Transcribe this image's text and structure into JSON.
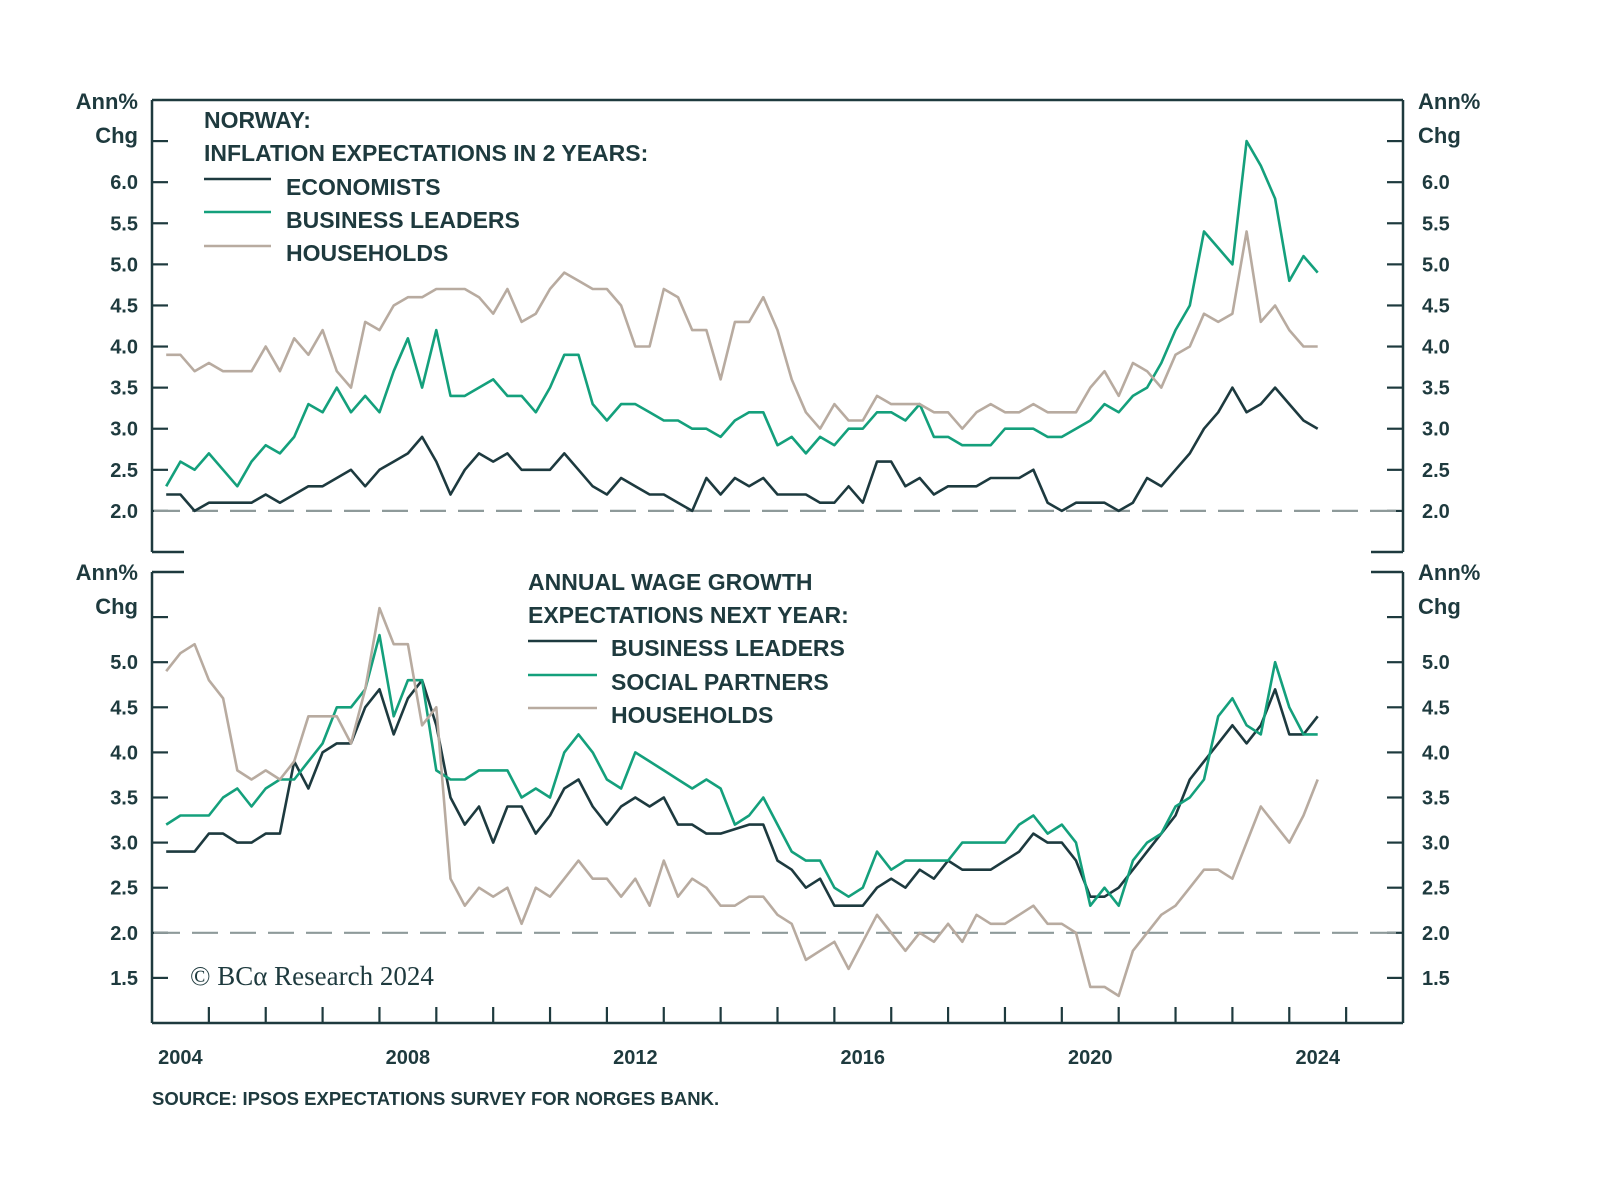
{
  "colors": {
    "frame": "#1e3a3e",
    "dark": "#1d3a3f",
    "green": "#14a07c",
    "tan": "#b8aba0",
    "dashed": "#8e9a9a"
  },
  "x_axis": {
    "tick_labels": [
      "2004",
      "2008",
      "2012",
      "2016",
      "2020",
      "2024"
    ]
  },
  "source": "SOURCE: IPSOS EXPECTATIONS SURVEY FOR NORGES BANK.",
  "copyright": "© BCα Research 2024",
  "chart_data": [
    {
      "type": "line",
      "title_lines": [
        "NORWAY:",
        "INFLATION EXPECTATIONS IN 2 YEARS:"
      ],
      "ylabel_lines": [
        "Ann%",
        "Chg"
      ],
      "ylim": [
        1.5,
        7.0
      ],
      "xlim": [
        2003.5,
        2025.5
      ],
      "y_tick_labels": [
        "2.0",
        "2.5",
        "3.0",
        "3.5",
        "4.0",
        "4.5",
        "5.0",
        "5.5",
        "6.0"
      ],
      "reference_line": 2.0,
      "legend_placement": "top-left",
      "x_start": 2003.75,
      "x_frequency": "quarterly",
      "series": [
        {
          "name": "ECONOMISTS",
          "color": "#1d3a3f",
          "values": [
            2.2,
            2.2,
            2.0,
            2.1,
            2.1,
            2.1,
            2.1,
            2.2,
            2.1,
            2.2,
            2.3,
            2.3,
            2.4,
            2.5,
            2.3,
            2.5,
            2.6,
            2.7,
            2.9,
            2.6,
            2.2,
            2.5,
            2.7,
            2.6,
            2.7,
            2.5,
            2.5,
            2.5,
            2.7,
            2.5,
            2.3,
            2.2,
            2.4,
            2.3,
            2.2,
            2.2,
            2.1,
            2.0,
            2.4,
            2.2,
            2.4,
            2.3,
            2.4,
            2.2,
            2.2,
            2.2,
            2.1,
            2.1,
            2.3,
            2.1,
            2.6,
            2.6,
            2.3,
            2.4,
            2.2,
            2.3,
            2.3,
            2.3,
            2.4,
            2.4,
            2.4,
            2.5,
            2.1,
            2.0,
            2.1,
            2.1,
            2.1,
            2.0,
            2.1,
            2.4,
            2.3,
            2.5,
            2.7,
            3.0,
            3.2,
            3.5,
            3.2,
            3.3,
            3.5,
            3.3,
            3.1,
            3.0
          ]
        },
        {
          "name": "BUSINESS LEADERS",
          "color": "#14a07c",
          "values": [
            2.3,
            2.6,
            2.5,
            2.7,
            2.5,
            2.3,
            2.6,
            2.8,
            2.7,
            2.9,
            3.3,
            3.2,
            3.5,
            3.2,
            3.4,
            3.2,
            3.7,
            4.1,
            3.5,
            4.2,
            3.4,
            3.4,
            3.5,
            3.6,
            3.4,
            3.4,
            3.2,
            3.5,
            3.9,
            3.9,
            3.3,
            3.1,
            3.3,
            3.3,
            3.2,
            3.1,
            3.1,
            3.0,
            3.0,
            2.9,
            3.1,
            3.2,
            3.2,
            2.8,
            2.9,
            2.7,
            2.9,
            2.8,
            3.0,
            3.0,
            3.2,
            3.2,
            3.1,
            3.3,
            2.9,
            2.9,
            2.8,
            2.8,
            2.8,
            3.0,
            3.0,
            3.0,
            2.9,
            2.9,
            3.0,
            3.1,
            3.3,
            3.2,
            3.4,
            3.5,
            3.8,
            4.2,
            4.5,
            5.4,
            5.2,
            5.0,
            6.5,
            6.2,
            5.8,
            4.8,
            5.1,
            4.9
          ]
        },
        {
          "name": "HOUSEHOLDS",
          "color": "#b8aba0",
          "values": [
            3.9,
            3.9,
            3.7,
            3.8,
            3.7,
            3.7,
            3.7,
            4.0,
            3.7,
            4.1,
            3.9,
            4.2,
            3.7,
            3.5,
            4.3,
            4.2,
            4.5,
            4.6,
            4.6,
            4.7,
            4.7,
            4.7,
            4.6,
            4.4,
            4.7,
            4.3,
            4.4,
            4.7,
            4.9,
            4.8,
            4.7,
            4.7,
            4.5,
            4.0,
            4.0,
            4.7,
            4.6,
            4.2,
            4.2,
            3.6,
            4.3,
            4.3,
            4.6,
            4.2,
            3.6,
            3.2,
            3.0,
            3.3,
            3.1,
            3.1,
            3.4,
            3.3,
            3.3,
            3.3,
            3.2,
            3.2,
            3.0,
            3.2,
            3.3,
            3.2,
            3.2,
            3.3,
            3.2,
            3.2,
            3.2,
            3.5,
            3.7,
            3.4,
            3.8,
            3.7,
            3.5,
            3.9,
            4.0,
            4.4,
            4.3,
            4.4,
            5.4,
            4.3,
            4.5,
            4.2,
            4.0,
            4.0
          ]
        }
      ]
    },
    {
      "type": "line",
      "title_lines": [
        "ANNUAL WAGE GROWTH",
        "EXPECTATIONS NEXT YEAR:"
      ],
      "ylabel_lines": [
        "Ann%",
        "Chg"
      ],
      "ylim": [
        1.0,
        6.0
      ],
      "xlim": [
        2003.5,
        2025.5
      ],
      "y_tick_labels": [
        "1.5",
        "2.0",
        "2.5",
        "3.0",
        "3.5",
        "4.0",
        "4.5",
        "5.0"
      ],
      "reference_line": 2.0,
      "legend_placement": "top-center",
      "x_start": 2003.75,
      "x_frequency": "quarterly",
      "series": [
        {
          "name": "BUSINESS LEADERS",
          "color": "#1d3a3f",
          "values": [
            2.9,
            2.9,
            2.9,
            3.1,
            3.1,
            3.0,
            3.0,
            3.1,
            3.1,
            3.9,
            3.6,
            4.0,
            4.1,
            4.1,
            4.5,
            4.7,
            4.2,
            4.6,
            4.8,
            4.3,
            3.5,
            3.2,
            3.4,
            3.0,
            3.4,
            3.4,
            3.1,
            3.3,
            3.6,
            3.7,
            3.4,
            3.2,
            3.4,
            3.5,
            3.4,
            3.5,
            3.2,
            3.2,
            3.1,
            3.1,
            3.15,
            3.2,
            3.2,
            2.8,
            2.7,
            2.5,
            2.6,
            2.3,
            2.3,
            2.3,
            2.5,
            2.6,
            2.5,
            2.7,
            2.6,
            2.8,
            2.7,
            2.7,
            2.7,
            2.8,
            2.9,
            3.1,
            3.0,
            3.0,
            2.8,
            2.4,
            2.4,
            2.5,
            2.7,
            2.9,
            3.1,
            3.3,
            3.7,
            3.9,
            4.1,
            4.3,
            4.1,
            4.3,
            4.7,
            4.2,
            4.2,
            4.4
          ]
        },
        {
          "name": "SOCIAL PARTNERS",
          "color": "#14a07c",
          "values": [
            3.2,
            3.3,
            3.3,
            3.3,
            3.5,
            3.6,
            3.4,
            3.6,
            3.7,
            3.7,
            3.9,
            4.1,
            4.5,
            4.5,
            4.7,
            5.3,
            4.4,
            4.8,
            4.8,
            3.8,
            3.7,
            3.7,
            3.8,
            3.8,
            3.8,
            3.5,
            3.6,
            3.5,
            4.0,
            4.2,
            4.0,
            3.7,
            3.6,
            4.0,
            3.9,
            3.8,
            3.7,
            3.6,
            3.7,
            3.6,
            3.2,
            3.3,
            3.5,
            3.2,
            2.9,
            2.8,
            2.8,
            2.5,
            2.4,
            2.5,
            2.9,
            2.7,
            2.8,
            2.8,
            2.8,
            2.8,
            3.0,
            3.0,
            3.0,
            3.0,
            3.2,
            3.3,
            3.1,
            3.2,
            3.0,
            2.3,
            2.5,
            2.3,
            2.8,
            3.0,
            3.1,
            3.4,
            3.5,
            3.7,
            4.4,
            4.6,
            4.3,
            4.2,
            5.0,
            4.5,
            4.2,
            4.2
          ]
        },
        {
          "name": "HOUSEHOLDS",
          "color": "#b8aba0",
          "values": [
            4.9,
            5.1,
            5.2,
            4.8,
            4.6,
            3.8,
            3.7,
            3.8,
            3.7,
            3.9,
            4.4,
            4.4,
            4.4,
            4.1,
            4.7,
            5.6,
            5.2,
            5.2,
            4.3,
            4.5,
            2.6,
            2.3,
            2.5,
            2.4,
            2.5,
            2.1,
            2.5,
            2.4,
            2.6,
            2.8,
            2.6,
            2.6,
            2.4,
            2.6,
            2.3,
            2.8,
            2.4,
            2.6,
            2.5,
            2.3,
            2.3,
            2.4,
            2.4,
            2.2,
            2.1,
            1.7,
            1.8,
            1.9,
            1.6,
            1.9,
            2.2,
            2.0,
            1.8,
            2.0,
            1.9,
            2.1,
            1.9,
            2.2,
            2.1,
            2.1,
            2.2,
            2.3,
            2.1,
            2.1,
            2.0,
            1.4,
            1.4,
            1.3,
            1.8,
            2.0,
            2.2,
            2.3,
            2.5,
            2.7,
            2.7,
            2.6,
            3.0,
            3.4,
            3.2,
            3.0,
            3.3,
            3.7
          ]
        }
      ]
    }
  ]
}
